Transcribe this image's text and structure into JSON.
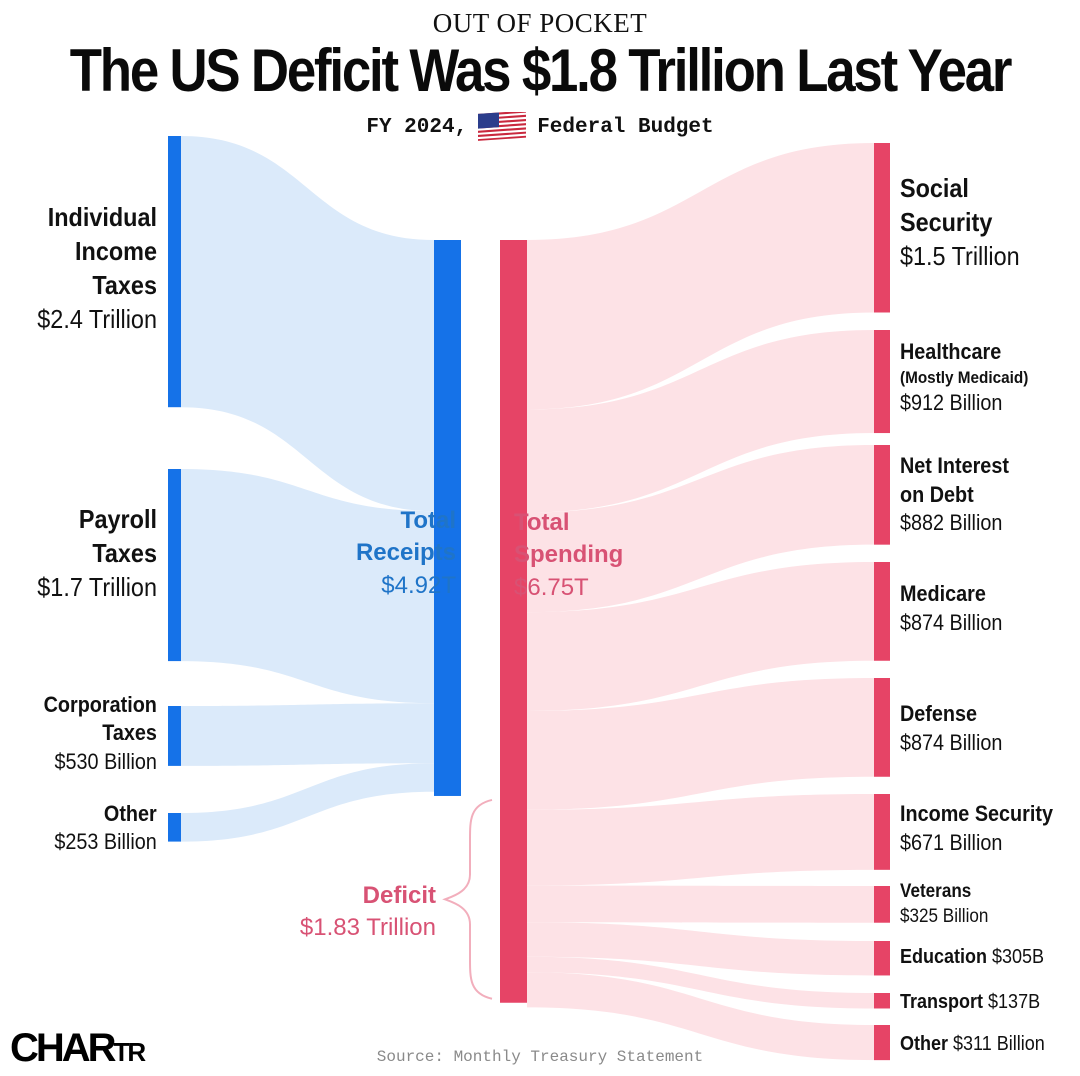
{
  "header": {
    "kicker": "OUT OF POCKET",
    "title": "The US Deficit Was $1.8 Trillion Last Year",
    "subtitle_prefix": "FY 2024,",
    "subtitle_icon": "us-flag-icon",
    "subtitle_suffix": "Federal Budget"
  },
  "colors": {
    "receipts": "#1572e8",
    "receipts_flow": "#dbeafa",
    "receipts_text": "#1f74c8",
    "spending": "#e64466",
    "spending_flow": "#fde2e6",
    "spending_text": "#d85274"
  },
  "chart_data": {
    "type": "sankey",
    "sources": [
      {
        "name_lines": [
          "Individual",
          "Income",
          "Taxes"
        ],
        "value_label": "$2.4 Trillion",
        "value": 2.4
      },
      {
        "name_lines": [
          "Payroll",
          "Taxes"
        ],
        "value_label": "$1.7 Trillion",
        "value": 1.7
      },
      {
        "name_lines": [
          "Corporation",
          "Taxes"
        ],
        "value_label": "$530 Billion",
        "value": 0.53
      },
      {
        "name_lines": [
          "Other"
        ],
        "value_label": "$253 Billion",
        "value": 0.253
      }
    ],
    "receipts": {
      "lines": [
        "Total",
        "Receipts",
        "$4.92T"
      ],
      "value": 4.92
    },
    "spending": {
      "lines": [
        "Total",
        "Spending",
        "$6.75T"
      ],
      "value": 6.75
    },
    "deficit": {
      "lines": [
        "Deficit",
        "$1.83 Trillion"
      ],
      "value": 1.83
    },
    "targets": [
      {
        "name_lines": [
          "Social",
          "Security"
        ],
        "value_label": "$1.5 Trillion",
        "value": 1.5
      },
      {
        "name_lines": [
          "Healthcare"
        ],
        "note": "(Mostly Medicaid)",
        "value_label": "$912 Billion",
        "value": 0.912
      },
      {
        "name_lines": [
          "Net Interest",
          "on Debt"
        ],
        "value_label": "$882 Billion",
        "value": 0.882
      },
      {
        "name_lines": [
          "Medicare"
        ],
        "value_label": "$874 Billion",
        "value": 0.874
      },
      {
        "name_lines": [
          "Defense"
        ],
        "value_label": "$874 Billion",
        "value": 0.874
      },
      {
        "name_lines": [
          "Income Security"
        ],
        "value_label": "$671 Billion",
        "value": 0.671
      },
      {
        "name_lines": [
          "Veterans"
        ],
        "value_label": "$325 Billion",
        "value": 0.325
      },
      {
        "name_lines": [
          "Education"
        ],
        "value_label": "$305B",
        "value": 0.305,
        "inline": true
      },
      {
        "name_lines": [
          "Transport"
        ],
        "value_label": "$137B",
        "value": 0.137,
        "inline": true
      },
      {
        "name_lines": [
          "Other"
        ],
        "value_label": "$311 Billion",
        "value": 0.311,
        "inline": true
      }
    ]
  },
  "footer": {
    "source": "Source: Monthly Treasury Statement",
    "logo_main": "CHAR",
    "logo_small": "TR"
  }
}
